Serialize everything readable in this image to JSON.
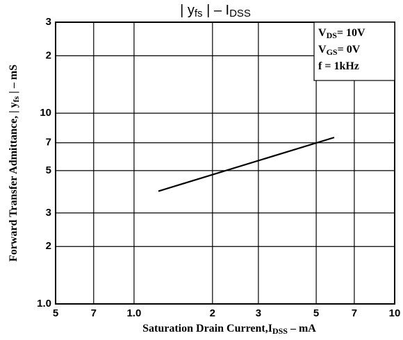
{
  "chart_data": {
    "type": "line",
    "title": [
      "| y",
      "fs",
      " |   –   I",
      "DSS"
    ],
    "x_label": [
      "Saturation Drain Current,I",
      "DSS",
      " – mA"
    ],
    "y_label": [
      "Forward Transfer Admittance, | y",
      "fs",
      " |   – mS"
    ],
    "annotations": [
      [
        "V",
        "DS",
        "= 10V"
      ],
      [
        "V",
        "GS",
        "= 0V"
      ],
      [
        "f = 1kHz"
      ]
    ],
    "x_scale": "log",
    "y_scale": "log",
    "grid": true,
    "xlim": [
      0.5,
      10
    ],
    "ylim": [
      1,
      30
    ],
    "xticks": [
      {
        "value": 0.5,
        "label": "5"
      },
      {
        "value": 0.7,
        "label": "7"
      },
      {
        "value": 1,
        "label": "1.0"
      },
      2,
      3,
      5,
      7,
      10
    ],
    "yticks": [
      {
        "value": 1,
        "label": "1.0"
      },
      2,
      3,
      5,
      7,
      10,
      {
        "value": 20,
        "label": "2"
      },
      {
        "value": 30,
        "label": "3"
      }
    ],
    "series": [
      {
        "color": "#000000",
        "x": [
          1.24,
          5.86
        ],
        "values": [
          3.9,
          7.46
        ]
      }
    ]
  }
}
